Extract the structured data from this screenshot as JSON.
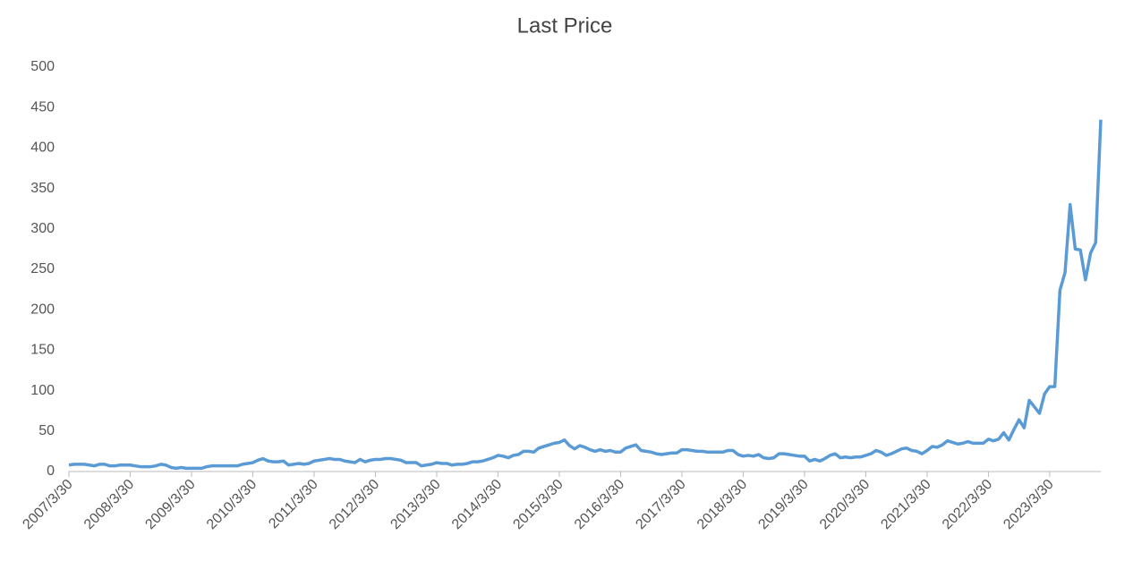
{
  "chart_data": {
    "type": "line",
    "title": "Last Price",
    "categories": [
      "2007/3/30",
      null,
      null,
      null,
      null,
      null,
      null,
      null,
      null,
      null,
      null,
      null,
      "2008/3/30",
      null,
      null,
      null,
      null,
      null,
      null,
      null,
      null,
      null,
      null,
      null,
      "2009/3/30",
      null,
      null,
      null,
      null,
      null,
      null,
      null,
      null,
      null,
      null,
      null,
      "2010/3/30",
      null,
      null,
      null,
      null,
      null,
      null,
      null,
      null,
      null,
      null,
      null,
      "2011/3/30",
      null,
      null,
      null,
      null,
      null,
      null,
      null,
      null,
      null,
      null,
      null,
      "2012/3/30",
      null,
      null,
      null,
      null,
      null,
      null,
      null,
      null,
      null,
      null,
      null,
      "2013/3/30",
      null,
      null,
      null,
      null,
      null,
      null,
      null,
      null,
      null,
      null,
      null,
      "2014/3/30",
      null,
      null,
      null,
      null,
      null,
      null,
      null,
      null,
      null,
      null,
      null,
      "2015/3/30",
      null,
      null,
      null,
      null,
      null,
      null,
      null,
      null,
      null,
      null,
      null,
      "2016/3/30",
      null,
      null,
      null,
      null,
      null,
      null,
      null,
      null,
      null,
      null,
      null,
      "2017/3/30",
      null,
      null,
      null,
      null,
      null,
      null,
      null,
      null,
      null,
      null,
      null,
      "2018/3/30",
      null,
      null,
      null,
      null,
      null,
      null,
      null,
      null,
      null,
      null,
      null,
      "2019/3/30",
      null,
      null,
      null,
      null,
      null,
      null,
      null,
      null,
      null,
      null,
      null,
      "2020/3/30",
      null,
      null,
      null,
      null,
      null,
      null,
      null,
      null,
      null,
      null,
      null,
      "2021/3/30",
      null,
      null,
      null,
      null,
      null,
      null,
      null,
      null,
      null,
      null,
      null,
      "2022/3/30",
      null,
      null,
      null,
      null,
      null,
      null,
      null,
      null,
      null,
      null,
      null,
      "2023/3/30",
      null,
      null,
      null,
      null,
      null,
      null,
      null,
      null,
      null,
      null
    ],
    "series": [
      {
        "name": "Last Price",
        "color": "#5b9bd5",
        "values": [
          8,
          9,
          9,
          9,
          8,
          7,
          9,
          9,
          7,
          7,
          8,
          8,
          8,
          7,
          6,
          6,
          6,
          7,
          9,
          8,
          5,
          4,
          5,
          4,
          4,
          4,
          4,
          6,
          7,
          7,
          7,
          7,
          7,
          7,
          9,
          10,
          11,
          14,
          16,
          13,
          12,
          12,
          13,
          8,
          9,
          10,
          9,
          10,
          13,
          14,
          15,
          16,
          15,
          15,
          13,
          12,
          11,
          15,
          12,
          14,
          15,
          15,
          16,
          16,
          15,
          14,
          11,
          11,
          11,
          7,
          8,
          9,
          11,
          10,
          10,
          8,
          9,
          9,
          10,
          12,
          12,
          13,
          15,
          17,
          20,
          19,
          17,
          20,
          21,
          25,
          25,
          24,
          29,
          31,
          33,
          35,
          36,
          39,
          32,
          28,
          32,
          30,
          27,
          25,
          27,
          25,
          26,
          24,
          24,
          29,
          31,
          33,
          26,
          25,
          24,
          22,
          21,
          22,
          23,
          23,
          27,
          27,
          26,
          25,
          25,
          24,
          24,
          24,
          24,
          26,
          26,
          21,
          19,
          20,
          19,
          21,
          17,
          16,
          17,
          22,
          22,
          21,
          20,
          19,
          19,
          13,
          15,
          13,
          16,
          20,
          22,
          17,
          18,
          17,
          18,
          18,
          20,
          22,
          26,
          24,
          20,
          22,
          25,
          28,
          29,
          26,
          25,
          22,
          26,
          31,
          30,
          33,
          38,
          36,
          34,
          35,
          37,
          35,
          35,
          35,
          40,
          38,
          40,
          48,
          39,
          52,
          64,
          54,
          88,
          80,
          72,
          96,
          105,
          105,
          224,
          246,
          330,
          275,
          274,
          237,
          270,
          283,
          435
        ]
      }
    ],
    "ylim": [
      0,
      500
    ],
    "yticks": [
      0,
      50,
      100,
      150,
      200,
      250,
      300,
      350,
      400,
      450,
      500
    ]
  }
}
